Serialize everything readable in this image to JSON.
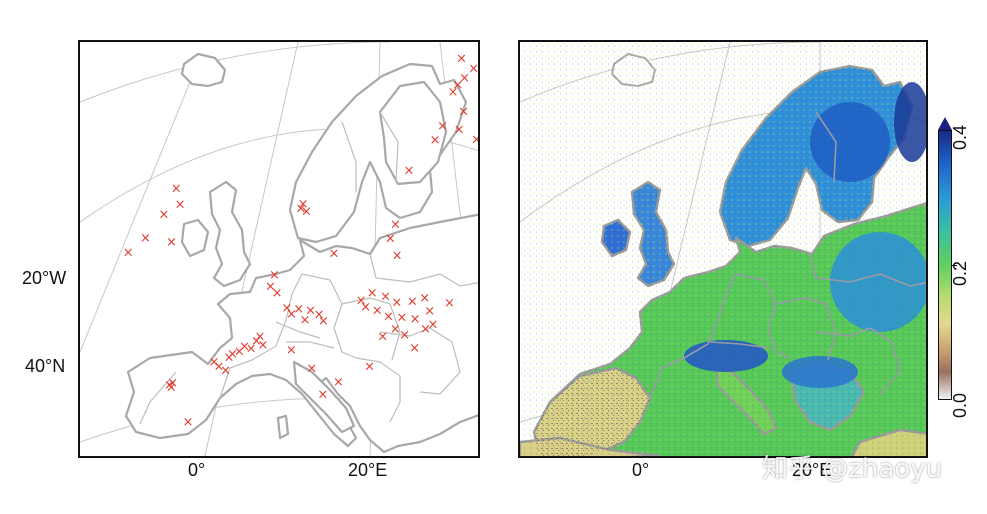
{
  "left_panel": {
    "lon_labels": [
      "0°",
      "20°E"
    ],
    "lat_labels": [
      "20°W",
      "40°N"
    ],
    "marker_color": "#e23b2e",
    "marker_symbol": "×",
    "stations": [
      [
        -4.2,
        40.4
      ],
      [
        -4.0,
        40.2
      ],
      [
        -3.8,
        40.6
      ],
      [
        -2.0,
        37.2
      ],
      [
        1.2,
        42.6
      ],
      [
        1.8,
        42.2
      ],
      [
        2.6,
        41.8
      ],
      [
        3.0,
        42.9
      ],
      [
        3.4,
        43.2
      ],
      [
        4.2,
        43.4
      ],
      [
        4.8,
        43.8
      ],
      [
        5.6,
        43.6
      ],
      [
        6.2,
        44.2
      ],
      [
        7.0,
        43.8
      ],
      [
        6.6,
        44.6
      ],
      [
        -8.5,
        52.0
      ],
      [
        -6.5,
        53.4
      ],
      [
        -4.4,
        55.6
      ],
      [
        -3.6,
        53.2
      ],
      [
        -2.6,
        56.6
      ],
      [
        -3.0,
        58.0
      ],
      [
        7.6,
        49.0
      ],
      [
        8.0,
        50.0
      ],
      [
        8.4,
        48.4
      ],
      [
        9.6,
        47.0
      ],
      [
        10.2,
        46.4
      ],
      [
        11.0,
        46.8
      ],
      [
        11.8,
        45.8
      ],
      [
        12.4,
        46.6
      ],
      [
        13.4,
        46.2
      ],
      [
        14.0,
        45.6
      ],
      [
        10.4,
        43.2
      ],
      [
        13.0,
        41.4
      ],
      [
        16.4,
        40.0
      ],
      [
        14.6,
        39.0
      ],
      [
        10.6,
        55.8
      ],
      [
        10.8,
        56.2
      ],
      [
        11.2,
        55.5
      ],
      [
        14.6,
        51.6
      ],
      [
        20.8,
        52.6
      ],
      [
        21.2,
        53.8
      ],
      [
        21.8,
        51.0
      ],
      [
        18.2,
        47.2
      ],
      [
        18.8,
        46.6
      ],
      [
        19.4,
        47.8
      ],
      [
        20.2,
        46.2
      ],
      [
        21.0,
        47.4
      ],
      [
        21.6,
        45.6
      ],
      [
        22.4,
        46.8
      ],
      [
        23.2,
        45.4
      ],
      [
        24.2,
        46.8
      ],
      [
        24.8,
        45.2
      ],
      [
        25.6,
        47.0
      ],
      [
        26.4,
        45.8
      ],
      [
        27.0,
        44.6
      ],
      [
        26.2,
        44.2
      ],
      [
        23.8,
        43.8
      ],
      [
        22.6,
        44.4
      ],
      [
        21.2,
        43.8
      ],
      [
        25.2,
        42.6
      ],
      [
        20.0,
        41.2
      ],
      [
        28.6,
        46.4
      ],
      [
        25.6,
        65.4
      ],
      [
        26.0,
        66.0
      ],
      [
        26.6,
        66.6
      ],
      [
        27.4,
        67.4
      ],
      [
        26.0,
        68.4
      ],
      [
        27.0,
        63.6
      ],
      [
        25.0,
        62.4
      ],
      [
        24.4,
        61.2
      ],
      [
        26.8,
        62.0
      ],
      [
        28.8,
        61.0
      ],
      [
        30.0,
        63.0
      ],
      [
        36.0,
        56.4
      ],
      [
        22.0,
        58.6
      ]
    ]
  },
  "right_panel": {
    "lon_labels": [
      "0°",
      "20°E"
    ]
  },
  "colorbar": {
    "labels": [
      "0.4",
      "0.2",
      "0.0"
    ],
    "colors": [
      "#1a2a8a",
      "#1f62c8",
      "#2a9ad8",
      "#3cc0a0",
      "#5fd060",
      "#b8dc70",
      "#e4d890",
      "#c8a070",
      "#9a7060",
      "#f2f2f2"
    ]
  },
  "watermark": "知乎 @zhaoyu"
}
